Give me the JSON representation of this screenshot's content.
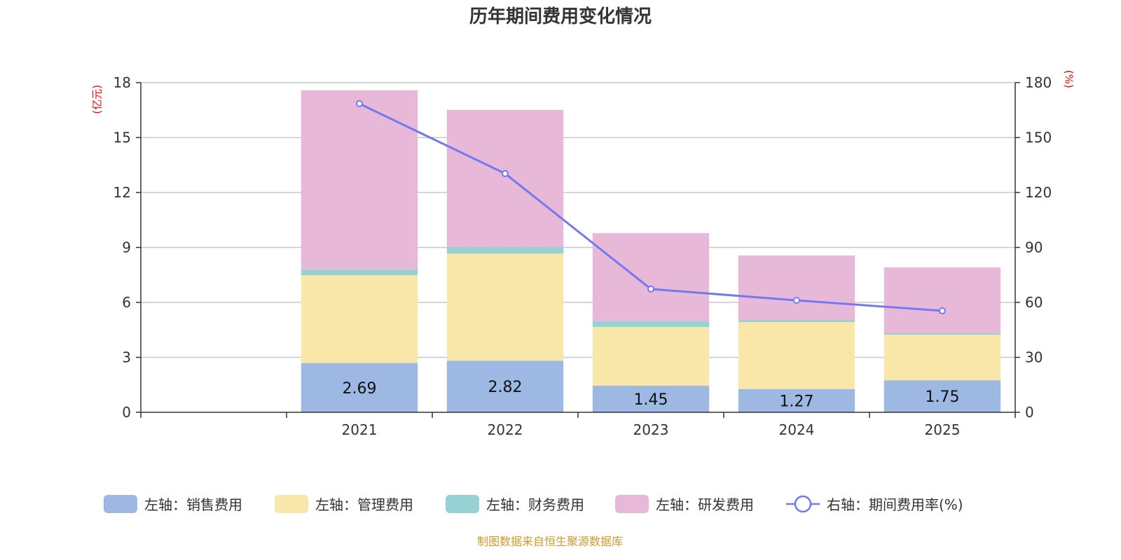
{
  "chart_data": {
    "type": "bar",
    "title": "历年期间费用变化情况",
    "categories": [
      "",
      "2021",
      "2022",
      "2023",
      "2024",
      "2025"
    ],
    "left_axis": {
      "unit": "(亿元)",
      "ylim": [
        0,
        18
      ],
      "ticks": [
        0,
        3,
        6,
        9,
        12,
        15,
        18
      ]
    },
    "right_axis": {
      "unit": "(%)",
      "ylim": [
        0,
        180
      ],
      "ticks": [
        0,
        30,
        60,
        90,
        120,
        150,
        180
      ]
    },
    "grid": true,
    "legend_placement": "bottom",
    "stacked": true,
    "series": [
      {
        "name": "左轴：销售费用",
        "type": "bar",
        "axis": "left",
        "color": "#9db8e2",
        "values": [
          null,
          2.69,
          2.82,
          1.45,
          1.27,
          1.75
        ],
        "labels": [
          "",
          "2.69",
          "2.82",
          "1.45",
          "1.27",
          "1.75"
        ]
      },
      {
        "name": "左轴：管理费用",
        "type": "bar",
        "axis": "left",
        "color": "#f9e7a9",
        "values": [
          null,
          4.8,
          5.85,
          3.21,
          3.66,
          2.49
        ]
      },
      {
        "name": "左轴：财务费用",
        "type": "bar",
        "axis": "left",
        "color": "#96d2d4",
        "values": [
          null,
          0.31,
          0.35,
          0.31,
          0.11,
          0.08
        ]
      },
      {
        "name": "左轴：研发费用",
        "type": "bar",
        "axis": "left",
        "color": "#e8b8d9",
        "values": [
          null,
          9.78,
          7.49,
          4.81,
          3.52,
          3.59
        ]
      },
      {
        "name": "右轴：期间费用率(%)",
        "type": "line",
        "axis": "right",
        "color": "#7479f0",
        "values": [
          null,
          168.5,
          130.3,
          67.3,
          61.1,
          55.4
        ]
      }
    ]
  },
  "footer": "制图数据来自恒生聚源数据库"
}
